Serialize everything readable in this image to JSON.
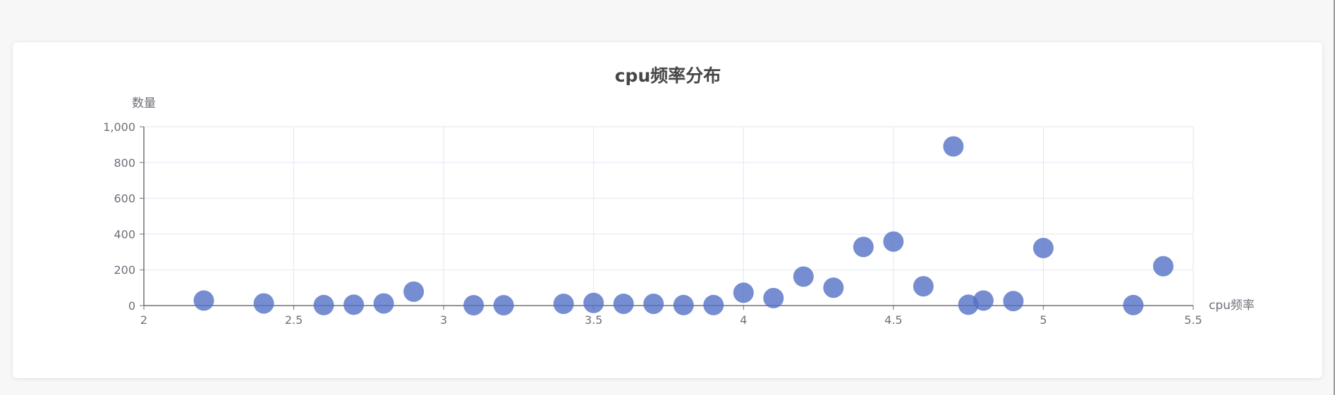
{
  "chart_data": {
    "type": "scatter",
    "title": "cpu频率分布",
    "xlabel": "cpu频率",
    "ylabel": "数量",
    "xlim": [
      2,
      5.5
    ],
    "ylim": [
      0,
      1000
    ],
    "x_ticks": [
      2,
      2.5,
      3,
      3.5,
      4,
      4.5,
      5,
      5.5
    ],
    "x_tick_labels": [
      "2",
      "2.5",
      "3",
      "3.5",
      "4",
      "4.5",
      "5",
      "5.5"
    ],
    "y_ticks": [
      0,
      200,
      400,
      600,
      800,
      1000
    ],
    "y_tick_labels": [
      "0",
      "200",
      "400",
      "600",
      "800",
      "1,000"
    ],
    "grid": true,
    "color": "#5470c6",
    "points": [
      {
        "x": 2.2,
        "y": 28
      },
      {
        "x": 2.4,
        "y": 12
      },
      {
        "x": 2.6,
        "y": 3
      },
      {
        "x": 2.7,
        "y": 5
      },
      {
        "x": 2.8,
        "y": 12
      },
      {
        "x": 2.9,
        "y": 78
      },
      {
        "x": 3.1,
        "y": 2
      },
      {
        "x": 3.2,
        "y": 2
      },
      {
        "x": 3.4,
        "y": 10
      },
      {
        "x": 3.5,
        "y": 15
      },
      {
        "x": 3.6,
        "y": 10
      },
      {
        "x": 3.7,
        "y": 10
      },
      {
        "x": 3.8,
        "y": 3
      },
      {
        "x": 3.9,
        "y": 3
      },
      {
        "x": 4.0,
        "y": 72
      },
      {
        "x": 4.1,
        "y": 42
      },
      {
        "x": 4.2,
        "y": 162
      },
      {
        "x": 4.3,
        "y": 100
      },
      {
        "x": 4.4,
        "y": 328
      },
      {
        "x": 4.5,
        "y": 358
      },
      {
        "x": 4.6,
        "y": 108
      },
      {
        "x": 4.7,
        "y": 890
      },
      {
        "x": 4.75,
        "y": 5
      },
      {
        "x": 4.8,
        "y": 28
      },
      {
        "x": 4.9,
        "y": 25
      },
      {
        "x": 5.0,
        "y": 322
      },
      {
        "x": 5.3,
        "y": 3
      },
      {
        "x": 5.4,
        "y": 220
      }
    ]
  }
}
